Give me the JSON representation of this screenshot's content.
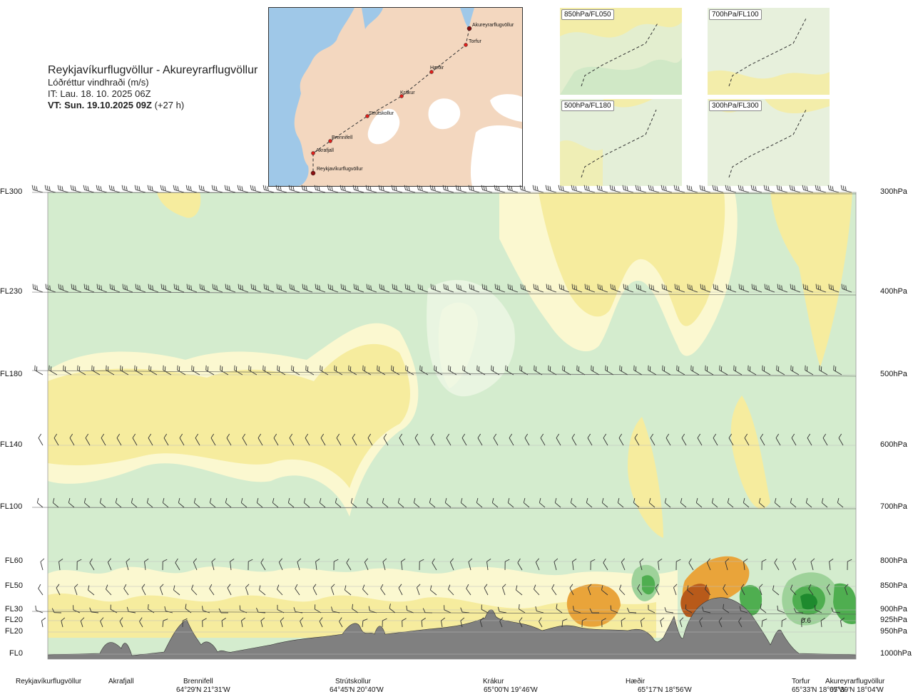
{
  "header": {
    "route_title": "Reykjavíkurflugvöllur - Akureyrarflugvöllur",
    "product": "Lóðréttur vindhraði (m/s)",
    "issue_time": "IT: Lau. 18. 10. 2025 06Z",
    "valid_label": "VT: Sun. 19.10.2025 09Z",
    "valid_offset": "(+27 h)"
  },
  "map": {
    "waypoints": [
      {
        "name": "Akureyrarflugvöllur"
      },
      {
        "name": "Torfur"
      },
      {
        "name": "Hæðir"
      },
      {
        "name": "Krákur"
      },
      {
        "name": "Strútskollur"
      },
      {
        "name": "Brennifell"
      },
      {
        "name": "Akrafjall"
      },
      {
        "name": "Reykjavíkurflugvöllur"
      }
    ],
    "colors": {
      "land": "#f3d7bf",
      "water": "#9fc8e8",
      "ice": "#ffffff",
      "route": "#333333",
      "point": "#e0201c"
    }
  },
  "panels": [
    {
      "label": "850hPa/FL050"
    },
    {
      "label": "700hPa/FL100"
    },
    {
      "label": "500hPa/FL180"
    },
    {
      "label": "300hPa/FL300"
    }
  ],
  "chart_data": {
    "type": "heatmap",
    "title": "Reykjavíkurflugvöllur - Akureyrarflugvöllur",
    "variable": "Lóðréttur vindhraði (m/s)",
    "y_levels": [
      {
        "fl": "FL300",
        "hpa": "300hPa"
      },
      {
        "fl": "FL230",
        "hpa": "400hPa"
      },
      {
        "fl": "FL180",
        "hpa": "500hPa"
      },
      {
        "fl": "FL140",
        "hpa": "600hPa"
      },
      {
        "fl": "FL100",
        "hpa": "700hPa"
      },
      {
        "fl": "FL60",
        "hpa": "800hPa"
      },
      {
        "fl": "FL50",
        "hpa": "850hPa"
      },
      {
        "fl": "FL30",
        "hpa": "900hPa"
      },
      {
        "fl": "FL20",
        "hpa": "925hPa"
      },
      {
        "fl": "FL20",
        "hpa": "950hPa"
      },
      {
        "fl": "FL0",
        "hpa": "1000hPa"
      }
    ],
    "stations": [
      {
        "name": "Reykjavíkurflugvöllur",
        "coord": ""
      },
      {
        "name": "Akrafjall",
        "coord": ""
      },
      {
        "name": "Brennifell",
        "coord": "64°29'N 21°31'W"
      },
      {
        "name": "Strútskollur",
        "coord": "64°45'N 20°40'W"
      },
      {
        "name": "Krákur",
        "coord": "65°00'N 19°46'W"
      },
      {
        "name": "Hæðir",
        "coord": "65°17'N 18°56'W"
      },
      {
        "name": "Torfur",
        "coord": "65°33'N 18°07'W"
      },
      {
        "name": "Akureyrarflugvöllur",
        "coord": "65°39'N 18°04'W"
      }
    ],
    "annotation": "0.6",
    "colors": {
      "strong_down": "#b85a1a",
      "down2": "#e9a43a",
      "down1": "#f6ec9e",
      "weak_down": "#fbf8d0",
      "weak_up": "#eef8e6",
      "up1": "#d4ecce",
      "up2": "#9ed29a",
      "up3": "#4fae50",
      "strong_up": "#1e8a2e",
      "terrain": "#808080"
    },
    "grid": true,
    "legend": "none"
  }
}
